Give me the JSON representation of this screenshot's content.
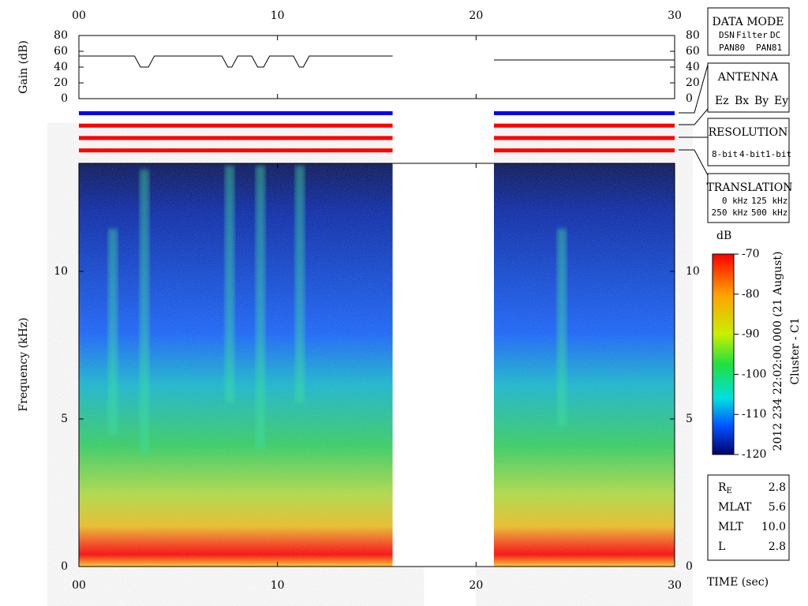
{
  "chart_data": [
    {
      "type": "line",
      "ylabel": "Gain (dB)",
      "xlim": [
        0,
        30
      ],
      "xticks": [
        {
          "value": 0,
          "label": "00"
        },
        10,
        20,
        30
      ],
      "ylim": [
        0,
        80
      ],
      "yticks": [
        0,
        20,
        40,
        60,
        80
      ],
      "series": [
        {
          "color": "#000000",
          "x": [
            0,
            2.8,
            2.95,
            3.1,
            3.5,
            3.65,
            3.8,
            7.2,
            7.35,
            7.5,
            7.7,
            7.85,
            8.0,
            8.7,
            8.85,
            9.0,
            9.3,
            9.45,
            9.6,
            10.8,
            10.95,
            11.1,
            11.3,
            11.45,
            11.6,
            15.8,
            18,
            20.9,
            30
          ],
          "values": [
            54,
            54,
            47,
            40,
            40,
            47,
            54,
            54,
            47,
            40,
            40,
            47,
            54,
            54,
            47,
            40,
            40,
            47,
            54,
            54,
            47,
            40,
            40,
            47,
            54,
            54,
            null,
            49,
            49
          ]
        }
      ]
    },
    {
      "type": "heatmap",
      "title": "2012 234 22:02:00.000 (21 August)",
      "subtitle": "Cluster - C1",
      "ylabel": "Frequency (kHz)",
      "xlabel": "TIME (sec)",
      "xlim": [
        0,
        30
      ],
      "xticks": [
        {
          "value": 0,
          "label": "00"
        },
        10,
        20,
        30
      ],
      "ylim": [
        0,
        13.66
      ],
      "yticks": [
        0,
        5,
        10
      ],
      "data_intervals": [
        [
          0,
          15.8
        ],
        [
          20.9,
          30
        ]
      ],
      "channels": [
        {
          "color": "#0000ff"
        },
        {
          "color": "#ff0000"
        },
        {
          "color": "#ff0000"
        },
        {
          "color": "#ff0000"
        }
      ],
      "colorbar": {
        "label": "dB",
        "lim": [
          -120,
          -70
        ],
        "ticks": [
          -70,
          -80,
          -90,
          -100,
          -110,
          -120
        ]
      }
    }
  ],
  "panels": [
    {
      "title": "DATA MODE",
      "items": [
        {
          "text": "DSN",
          "color": "#ff0000"
        },
        {
          "text": "Filter",
          "color": "#00c000"
        },
        {
          "text": "DC",
          "color": "#0000ff"
        },
        {
          "text": "PAN80",
          "color": "#000000"
        },
        {
          "text": "PAN81",
          "color": "#00c8c8"
        }
      ]
    },
    {
      "title": "ANTENNA",
      "items": [
        {
          "text": "Ez",
          "color": "#ff0000"
        },
        {
          "text": "Bx",
          "color": "#00c000"
        },
        {
          "text": "By",
          "color": "#0000ff"
        },
        {
          "text": "Ey",
          "color": "#000000"
        }
      ]
    },
    {
      "title": "RESOLUTION",
      "items": [
        {
          "text": "8-bit",
          "color": "#ff0000"
        },
        {
          "text": "4-bit",
          "color": "#00c000"
        },
        {
          "text": "1-bit",
          "color": "#0000ff"
        }
      ]
    },
    {
      "title": "TRANSLATION",
      "items": [
        {
          "text": "0 kHz",
          "color": "#ff0000"
        },
        {
          "text": "125 kHz",
          "color": "#00c000"
        },
        {
          "text": "250 kHz",
          "color": "#0000ff"
        },
        {
          "text": "500 kHz",
          "color": "#000000"
        }
      ]
    }
  ],
  "info": [
    {
      "label": "R",
      "sub": "E",
      "value": "2.8"
    },
    {
      "label": "MLAT",
      "value": "5.6"
    },
    {
      "label": "MLT",
      "value": "10.0"
    },
    {
      "label": "L",
      "value": "2.8"
    }
  ]
}
